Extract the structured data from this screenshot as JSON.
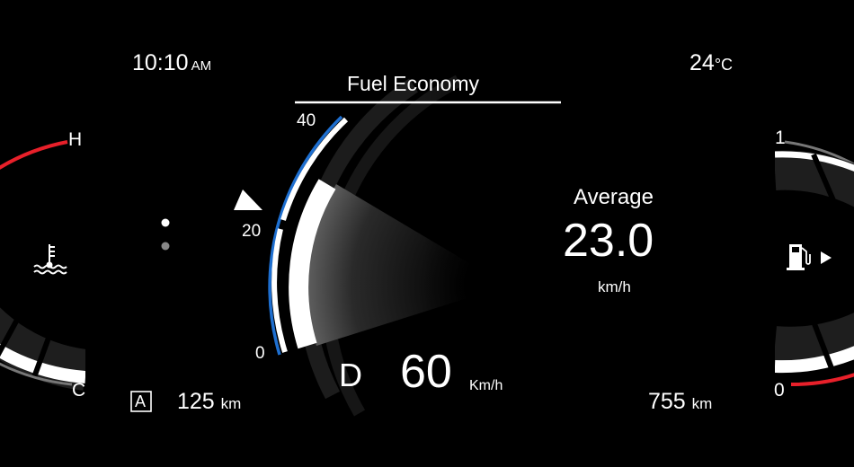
{
  "status": {
    "time": "10:10",
    "time_suffix": "AM",
    "temperature": "24",
    "temperature_unit": "°C"
  },
  "temp_gauge": {
    "high_label": "H",
    "low_label": "C",
    "icon": "coolant-temperature-icon",
    "hot_color": "#e8202a"
  },
  "fuel_gauge": {
    "full_label": "1",
    "empty_label": "0",
    "icon": "fuel-pump-icon",
    "low_color": "#e8202a"
  },
  "fuel_economy": {
    "title": "Fuel Economy",
    "scale_labels": [
      "40",
      "20",
      "0"
    ],
    "accent_color": "#1e6fd0",
    "average_label": "Average",
    "average_value": "23.0",
    "average_unit": "km/h"
  },
  "drive": {
    "gear": "D",
    "speed": "60",
    "speed_unit": "Km/h"
  },
  "trip": {
    "badge": "A",
    "distance": "125",
    "distance_unit": "km"
  },
  "range": {
    "distance": "755",
    "distance_unit": "km"
  }
}
